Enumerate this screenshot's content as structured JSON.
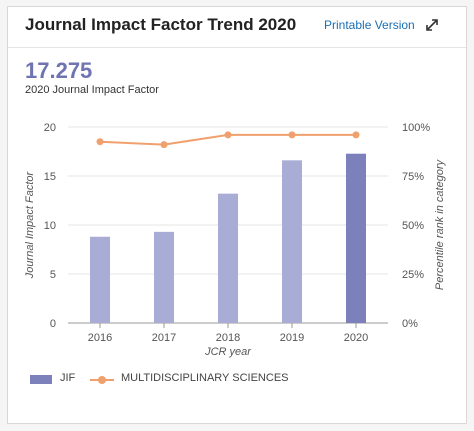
{
  "header": {
    "title": "Journal Impact Factor Trend 2020",
    "printable_label": "Printable Version",
    "expand_icon": "expand-icon"
  },
  "summary": {
    "value": "17.275",
    "caption": "2020 Journal Impact Factor"
  },
  "colors": {
    "bar": "#a9acd4",
    "bar_highlight": "#7c80bb",
    "line": "#f0a06c",
    "grid": "#e6e6e6"
  },
  "chart_data": {
    "type": "bar",
    "categories": [
      "2016",
      "2017",
      "2018",
      "2019",
      "2020"
    ],
    "series": [
      {
        "name": "JIF",
        "type": "bar",
        "axis": "left",
        "values": [
          8.8,
          9.3,
          13.2,
          16.6,
          17.275
        ]
      },
      {
        "name": "MULTIDISCIPLINARY SCIENCES",
        "type": "line",
        "axis": "right",
        "values": [
          92.5,
          91,
          96,
          96,
          96
        ]
      }
    ],
    "xlabel": "JCR year",
    "ylabel": "Journal Impact Factor",
    "y2label": "Percentile rank in category",
    "ylim": [
      0,
      20
    ],
    "y2lim": [
      0,
      100
    ],
    "yticks": [
      "0",
      "5",
      "10",
      "15",
      "20"
    ],
    "y2ticks": [
      "0%",
      "25%",
      "50%",
      "75%",
      "100%"
    ],
    "grid": true,
    "legend_position": "bottom-left"
  },
  "legend": {
    "jif_label": "JIF",
    "category_label": "MULTIDISCIPLINARY SCIENCES"
  }
}
